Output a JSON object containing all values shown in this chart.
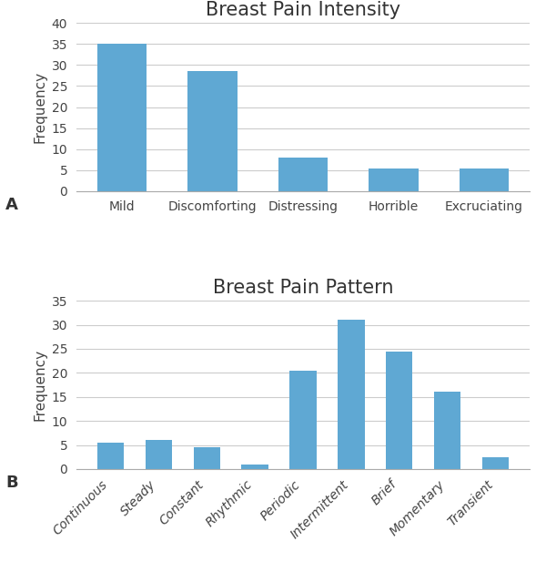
{
  "chart_A": {
    "title": "Breast Pain Intensity",
    "categories": [
      "Mild",
      "Discomforting",
      "Distressing",
      "Horrible",
      "Excruciating"
    ],
    "values": [
      35,
      28.5,
      8,
      5.5,
      5.5
    ],
    "ylim": [
      0,
      40
    ],
    "yticks": [
      0,
      5,
      10,
      15,
      20,
      25,
      30,
      35,
      40
    ],
    "ylabel": "Frequency",
    "label": "A"
  },
  "chart_B": {
    "title": "Breast Pain Pattern",
    "categories": [
      "Continuous",
      "Steady",
      "Constant",
      "Rhythmic",
      "Periodic",
      "Intermittent",
      "Brief",
      "Momentary",
      "Transient"
    ],
    "values": [
      5.5,
      6.0,
      4.5,
      1.0,
      20.5,
      31.0,
      24.5,
      16.0,
      2.5
    ],
    "ylim": [
      0,
      35
    ],
    "yticks": [
      0,
      5,
      10,
      15,
      20,
      25,
      30,
      35
    ],
    "ylabel": "Frequency",
    "label": "B"
  },
  "bar_color": "#5fa8d3",
  "background_color": "#ffffff",
  "title_fontsize": 15,
  "label_fontsize": 11,
  "tick_fontsize": 10,
  "grid_color": "#cccccc"
}
